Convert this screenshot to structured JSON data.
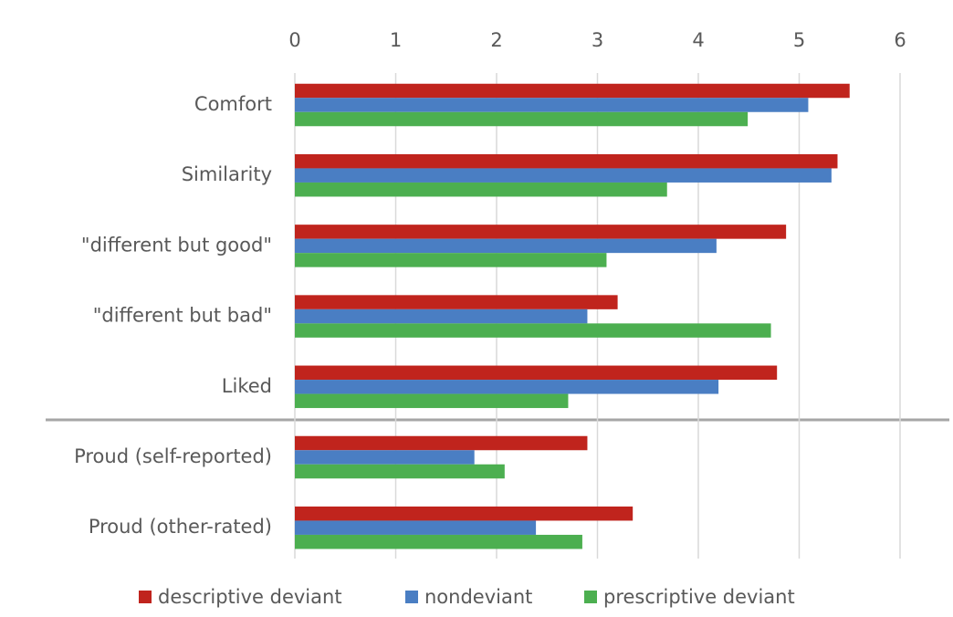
{
  "chart_data": {
    "type": "bar",
    "orientation": "horizontal",
    "categories": [
      "Comfort",
      "Similarity",
      "\"different but good\"",
      "\"different but bad\"",
      "Liked",
      "Proud (self-reported)",
      "Proud (other-rated)"
    ],
    "series": [
      {
        "name": "descriptive deviant",
        "color": "#c0241d",
        "values": [
          5.5,
          5.38,
          4.87,
          3.2,
          4.78,
          2.9,
          3.35
        ]
      },
      {
        "name": "nondeviant",
        "color": "#4a7ec3",
        "values": [
          5.09,
          5.32,
          4.18,
          2.9,
          4.2,
          1.78,
          2.39
        ]
      },
      {
        "name": "prescriptive deviant",
        "color": "#4caf50",
        "values": [
          4.49,
          3.69,
          3.09,
          4.72,
          2.71,
          2.08,
          2.85
        ]
      }
    ],
    "xlim": [
      0,
      6
    ],
    "xticks": [
      0,
      1,
      2,
      3,
      4,
      5,
      6
    ],
    "grid": true,
    "legend": "bottom"
  }
}
